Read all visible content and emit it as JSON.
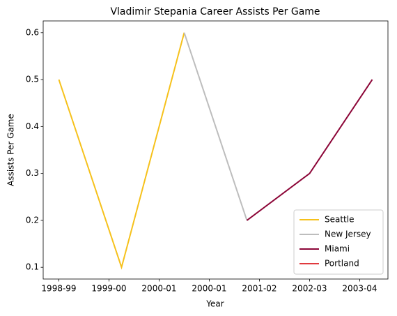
{
  "chart_data": {
    "type": "line",
    "title": "Vladimir Stepania Career Assists Per Game",
    "xlabel": "Year",
    "ylabel": "Assists Per Game",
    "series": [
      {
        "name": "Seattle",
        "color": "#f6c11b",
        "x": [
          0,
          1,
          2
        ],
        "values": [
          0.5,
          0.1,
          0.6
        ]
      },
      {
        "name": "New Jersey",
        "color": "#bdbdbd",
        "x": [
          2,
          3
        ],
        "values": [
          0.6,
          0.2
        ]
      },
      {
        "name": "Miami",
        "color": "#8c0537",
        "x": [
          3,
          4,
          5
        ],
        "values": [
          0.2,
          0.3,
          0.5
        ]
      },
      {
        "name": "Portland",
        "color": "#e03a3e",
        "x": [],
        "values": []
      }
    ],
    "xlim": [
      -0.25,
      5.25
    ],
    "xticks": [
      {
        "value": 0,
        "label": "1998-99"
      },
      {
        "value": 0.8,
        "label": "1999-00"
      },
      {
        "value": 1.6,
        "label": "2000-01"
      },
      {
        "value": 2.4,
        "label": "2000-01"
      },
      {
        "value": 3.2,
        "label": "2001-02"
      },
      {
        "value": 4.0,
        "label": "2002-03"
      },
      {
        "value": 4.8,
        "label": "2003-04"
      }
    ],
    "ylim": [
      0.075,
      0.625
    ],
    "yticks": [
      0.1,
      0.2,
      0.3,
      0.4,
      0.5,
      0.6
    ],
    "legend": "lower right"
  }
}
